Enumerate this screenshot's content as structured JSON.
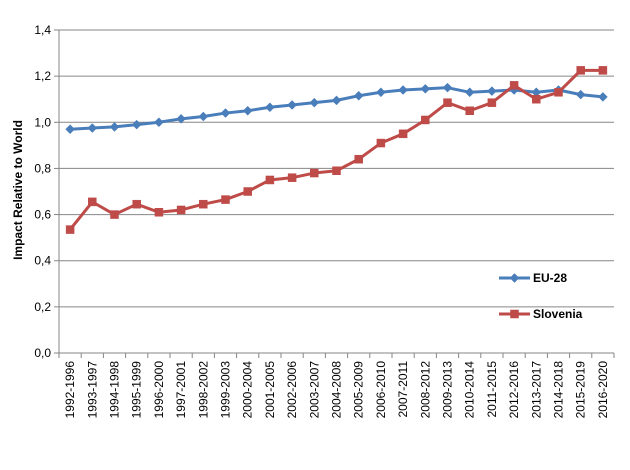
{
  "chart_data": {
    "type": "line",
    "title": "",
    "xlabel": "",
    "ylabel": "Impact Relative to World",
    "ylim": [
      0,
      1.4
    ],
    "y_ticks": [
      "0,0",
      "0,2",
      "0,4",
      "0,6",
      "0,8",
      "1,0",
      "1,2",
      "1,4"
    ],
    "y_tick_values": [
      0,
      0.2,
      0.4,
      0.6,
      0.8,
      1.0,
      1.2,
      1.4
    ],
    "grid": true,
    "legend_position": "right",
    "categories": [
      "1992-1996",
      "1993-1997",
      "1994-1998",
      "1995-1999",
      "1996-2000",
      "1997-2001",
      "1998-2002",
      "1999-2003",
      "2000-2004",
      "2001-2005",
      "2002-2006",
      "2003-2007",
      "2004-2008",
      "2005-2009",
      "2006-2010",
      "2007-2011",
      "2008-2012",
      "2009-2013",
      "2010-2014",
      "2011-2015",
      "2012-2016",
      "2013-2017",
      "2014-2018",
      "2015-2019",
      "2016-2020"
    ],
    "series": [
      {
        "name": "EU-28",
        "color": "#4a7ebb",
        "marker": "diamond",
        "values": [
          0.97,
          0.975,
          0.98,
          0.99,
          1.0,
          1.015,
          1.025,
          1.04,
          1.05,
          1.065,
          1.075,
          1.085,
          1.095,
          1.115,
          1.13,
          1.14,
          1.145,
          1.15,
          1.13,
          1.135,
          1.14,
          1.13,
          1.14,
          1.12,
          1.11
        ]
      },
      {
        "name": "Slovenia",
        "color": "#be4b48",
        "marker": "square",
        "values": [
          0.535,
          0.655,
          0.6,
          0.645,
          0.61,
          0.62,
          0.645,
          0.665,
          0.7,
          0.75,
          0.76,
          0.78,
          0.79,
          0.84,
          0.91,
          0.95,
          1.01,
          1.085,
          1.05,
          1.085,
          1.16,
          1.1,
          1.13,
          1.225,
          1.225
        ]
      }
    ]
  }
}
